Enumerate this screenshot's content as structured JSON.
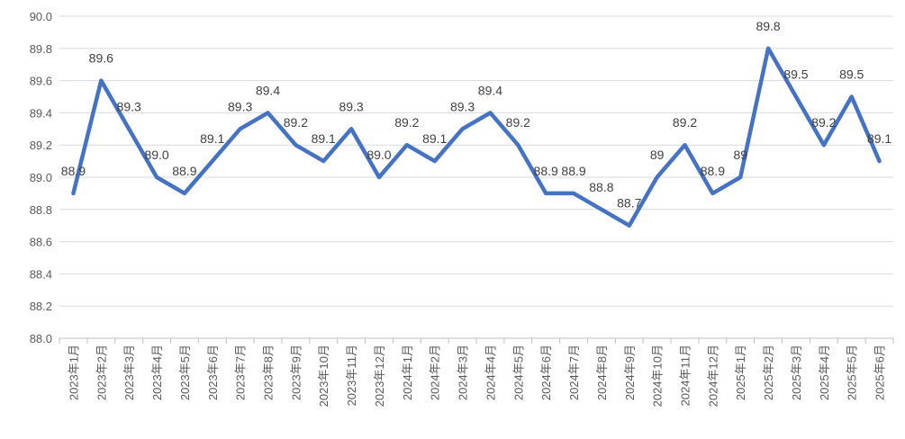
{
  "chart_data": {
    "type": "line",
    "title": "",
    "xlabel": "",
    "ylabel": "",
    "ylim": [
      88.0,
      90.0
    ],
    "ytick_step": 0.2,
    "yticks": [
      "88.0",
      "88.2",
      "88.4",
      "88.6",
      "88.8",
      "89.0",
      "89.2",
      "89.4",
      "89.6",
      "89.8",
      "90.0"
    ],
    "grid": true,
    "legend": "none",
    "line_color": "#4472C4",
    "categories": [
      "2023年1月",
      "2023年2月",
      "2023年3月",
      "2023年4月",
      "2023年5月",
      "2023年6月",
      "2023年7月",
      "2023年8月",
      "2023年9月",
      "2023年10月",
      "2023年11月",
      "2023年12月",
      "2024年1月",
      "2024年2月",
      "2024年3月",
      "2024年4月",
      "2024年5月",
      "2024年6月",
      "2024年7月",
      "2024年8月",
      "2024年9月",
      "2024年10月",
      "2024年11月",
      "2024年12月",
      "2025年1月",
      "2025年2月",
      "2025年3月",
      "2025年4月",
      "2025年5月",
      "2025年6月"
    ],
    "series": [
      {
        "name": "",
        "values": [
          88.9,
          89.6,
          89.3,
          89.0,
          88.9,
          89.1,
          89.3,
          89.4,
          89.2,
          89.1,
          89.3,
          89.0,
          89.2,
          89.1,
          89.3,
          89.4,
          89.2,
          88.9,
          88.9,
          88.8,
          88.7,
          89.0,
          89.2,
          88.9,
          89.0,
          89.8,
          89.5,
          89.2,
          89.5,
          89.1
        ],
        "labels": [
          "88.9",
          "89.6",
          "89.3",
          "89.0",
          "88.9",
          "89.1",
          "89.3",
          "89.4",
          "89.2",
          "89.1",
          "89.3",
          "89.0",
          "89.2",
          "89.1",
          "89.3",
          "89.4",
          "89.2",
          "88.9",
          "88.9",
          "88.8",
          "88.7",
          "89",
          "89.2",
          "88.9",
          "89",
          "89.8",
          "89.5",
          "89.2",
          "89.5",
          "89.1"
        ]
      }
    ]
  }
}
